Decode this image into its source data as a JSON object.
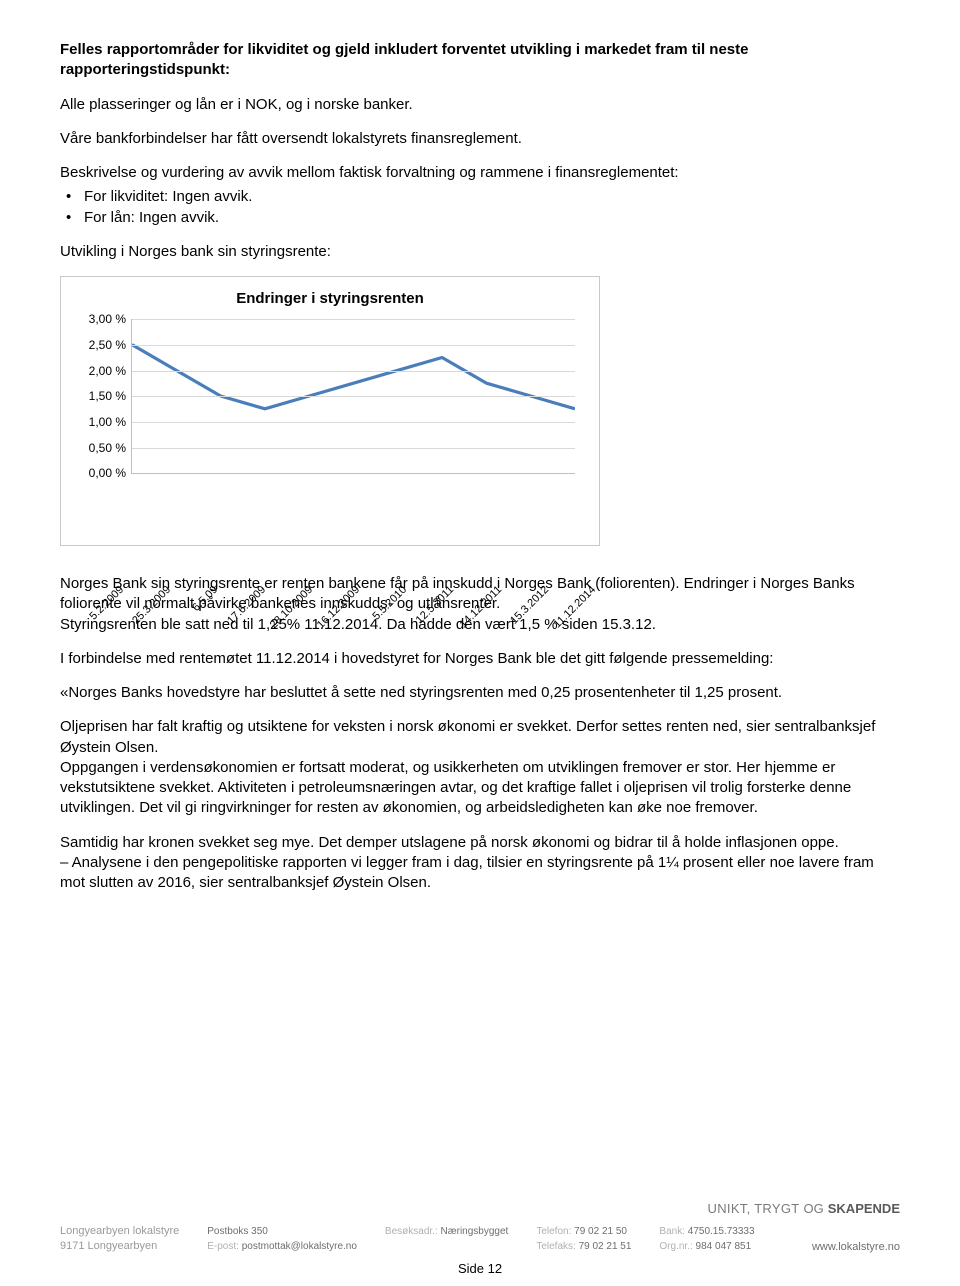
{
  "heading": "Felles rapportområder for likviditet og gjeld inkludert forventet utvikling i markedet fram til neste rapporteringstidspunkt:",
  "p1": "Alle plasseringer og lån er i NOK, og i norske banker.",
  "p2": "Våre bankforbindelser har fått oversendt lokalstyrets finansreglement.",
  "p3": "Beskrivelse og vurdering av avvik mellom faktisk forvaltning og rammene i finansreglementet:",
  "bullets": {
    "b1": "For likviditet: Ingen avvik.",
    "b2": "For lån: Ingen avvik."
  },
  "p4": "Utvikling i Norges bank sin styringsrente:",
  "chart": {
    "type": "line",
    "title": "Endringer i styringsrenten",
    "ylim": [
      0,
      3
    ],
    "ytick_step": 0.5,
    "yticks": [
      "0,00 %",
      "0,50 %",
      "1,00 %",
      "1,50 %",
      "2,00 %",
      "2,50 %",
      "3,00 %"
    ],
    "x_labels": [
      "5.2.2009",
      "25.3.2009",
      "6.5.09",
      "17.6.2009",
      "28.10.2009",
      "16.12.2009",
      "5.5.2010",
      "12.5.2011",
      "14.12.2011",
      "15.3.2012",
      "11.12.2014"
    ],
    "values": [
      2.5,
      2.0,
      1.5,
      1.25,
      1.5,
      1.75,
      2.0,
      2.25,
      1.75,
      1.5,
      1.25
    ],
    "line_color": "#4a7ebb",
    "grid_color": "#d9d9d9",
    "axis_color": "#bfbfbf",
    "background_color": "#ffffff",
    "border_color": "#c8c8c8",
    "line_width": 3.2,
    "title_fontsize": 15,
    "tick_fontsize": 12,
    "xlabel_fontsize": 11,
    "xlabel_rotation": -45
  },
  "p5": "Norges Bank sin styringsrente er renten bankene får på innskudd i Norges Bank (foliorenten). Endringer i Norges Banks foliorente vil normalt påvirke bankenes innskudds- og utlånsrenter.",
  "p5b": "Styringsrenten ble satt ned til 1,25% 11.12.2014. Da hadde den vært 1,5 % siden 15.3.12.",
  "p6": "I forbindelse med rentemøtet 11.12.2014 i hovedstyret for Norges Bank ble det gitt følgende pressemelding:",
  "p7": "«Norges Banks hovedstyre har besluttet å sette ned styringsrenten med 0,25 prosentenheter til 1,25 prosent.",
  "p8": "Oljeprisen har falt kraftig og utsiktene for veksten i norsk økonomi er svekket. Derfor settes renten ned, sier sentralbanksjef Øystein Olsen.",
  "p8b": "Oppgangen i verdensøkonomien er fortsatt moderat, og usikkerheten om utviklingen fremover er stor. Her hjemme er vekstutsiktene svekket. Aktiviteten i petroleumsnæringen avtar, og det kraftige fallet i oljeprisen vil trolig forsterke denne utviklingen. Det vil gi ringvirkninger for resten av økonomien, og arbeidsledigheten kan øke noe fremover.",
  "p9": "Samtidig har kronen svekket seg mye. Det demper utslagene på norsk økonomi og bidrar til å holde inflasjonen oppe.",
  "p9b": "– Analysene i den pengepolitiske rapporten vi legger fram i dag, tilsier en styringsrente på 1¼ prosent eller noe lavere fram mot slutten av 2016, sier sentralbanksjef Øystein Olsen.",
  "footer": {
    "tagline_a": "UNIKT, TRYGT",
    "tagline_b": "OG",
    "tagline_c": "SKAPENDE",
    "org1": "Longyearbyen lokalstyre",
    "org2": "9171 Longyearbyen",
    "post_lbl": "Postboks 350",
    "epost_lbl": "E-post:",
    "epost": "postmottak@lokalstyre.no",
    "besok_lbl": "Besøksadr.:",
    "besok": "Næringsbygget",
    "tlf_lbl": "Telefon:",
    "tlf": "79 02 21 50",
    "fax_lbl": "Telefaks:",
    "fax": "79 02 21 51",
    "bank_lbl": "Bank:",
    "bank": "4750.15.73333",
    "orgnr_lbl": "Org.nr.:",
    "orgnr": "984 047 851",
    "url": "www.lokalstyre.no",
    "page": "Side 12"
  }
}
